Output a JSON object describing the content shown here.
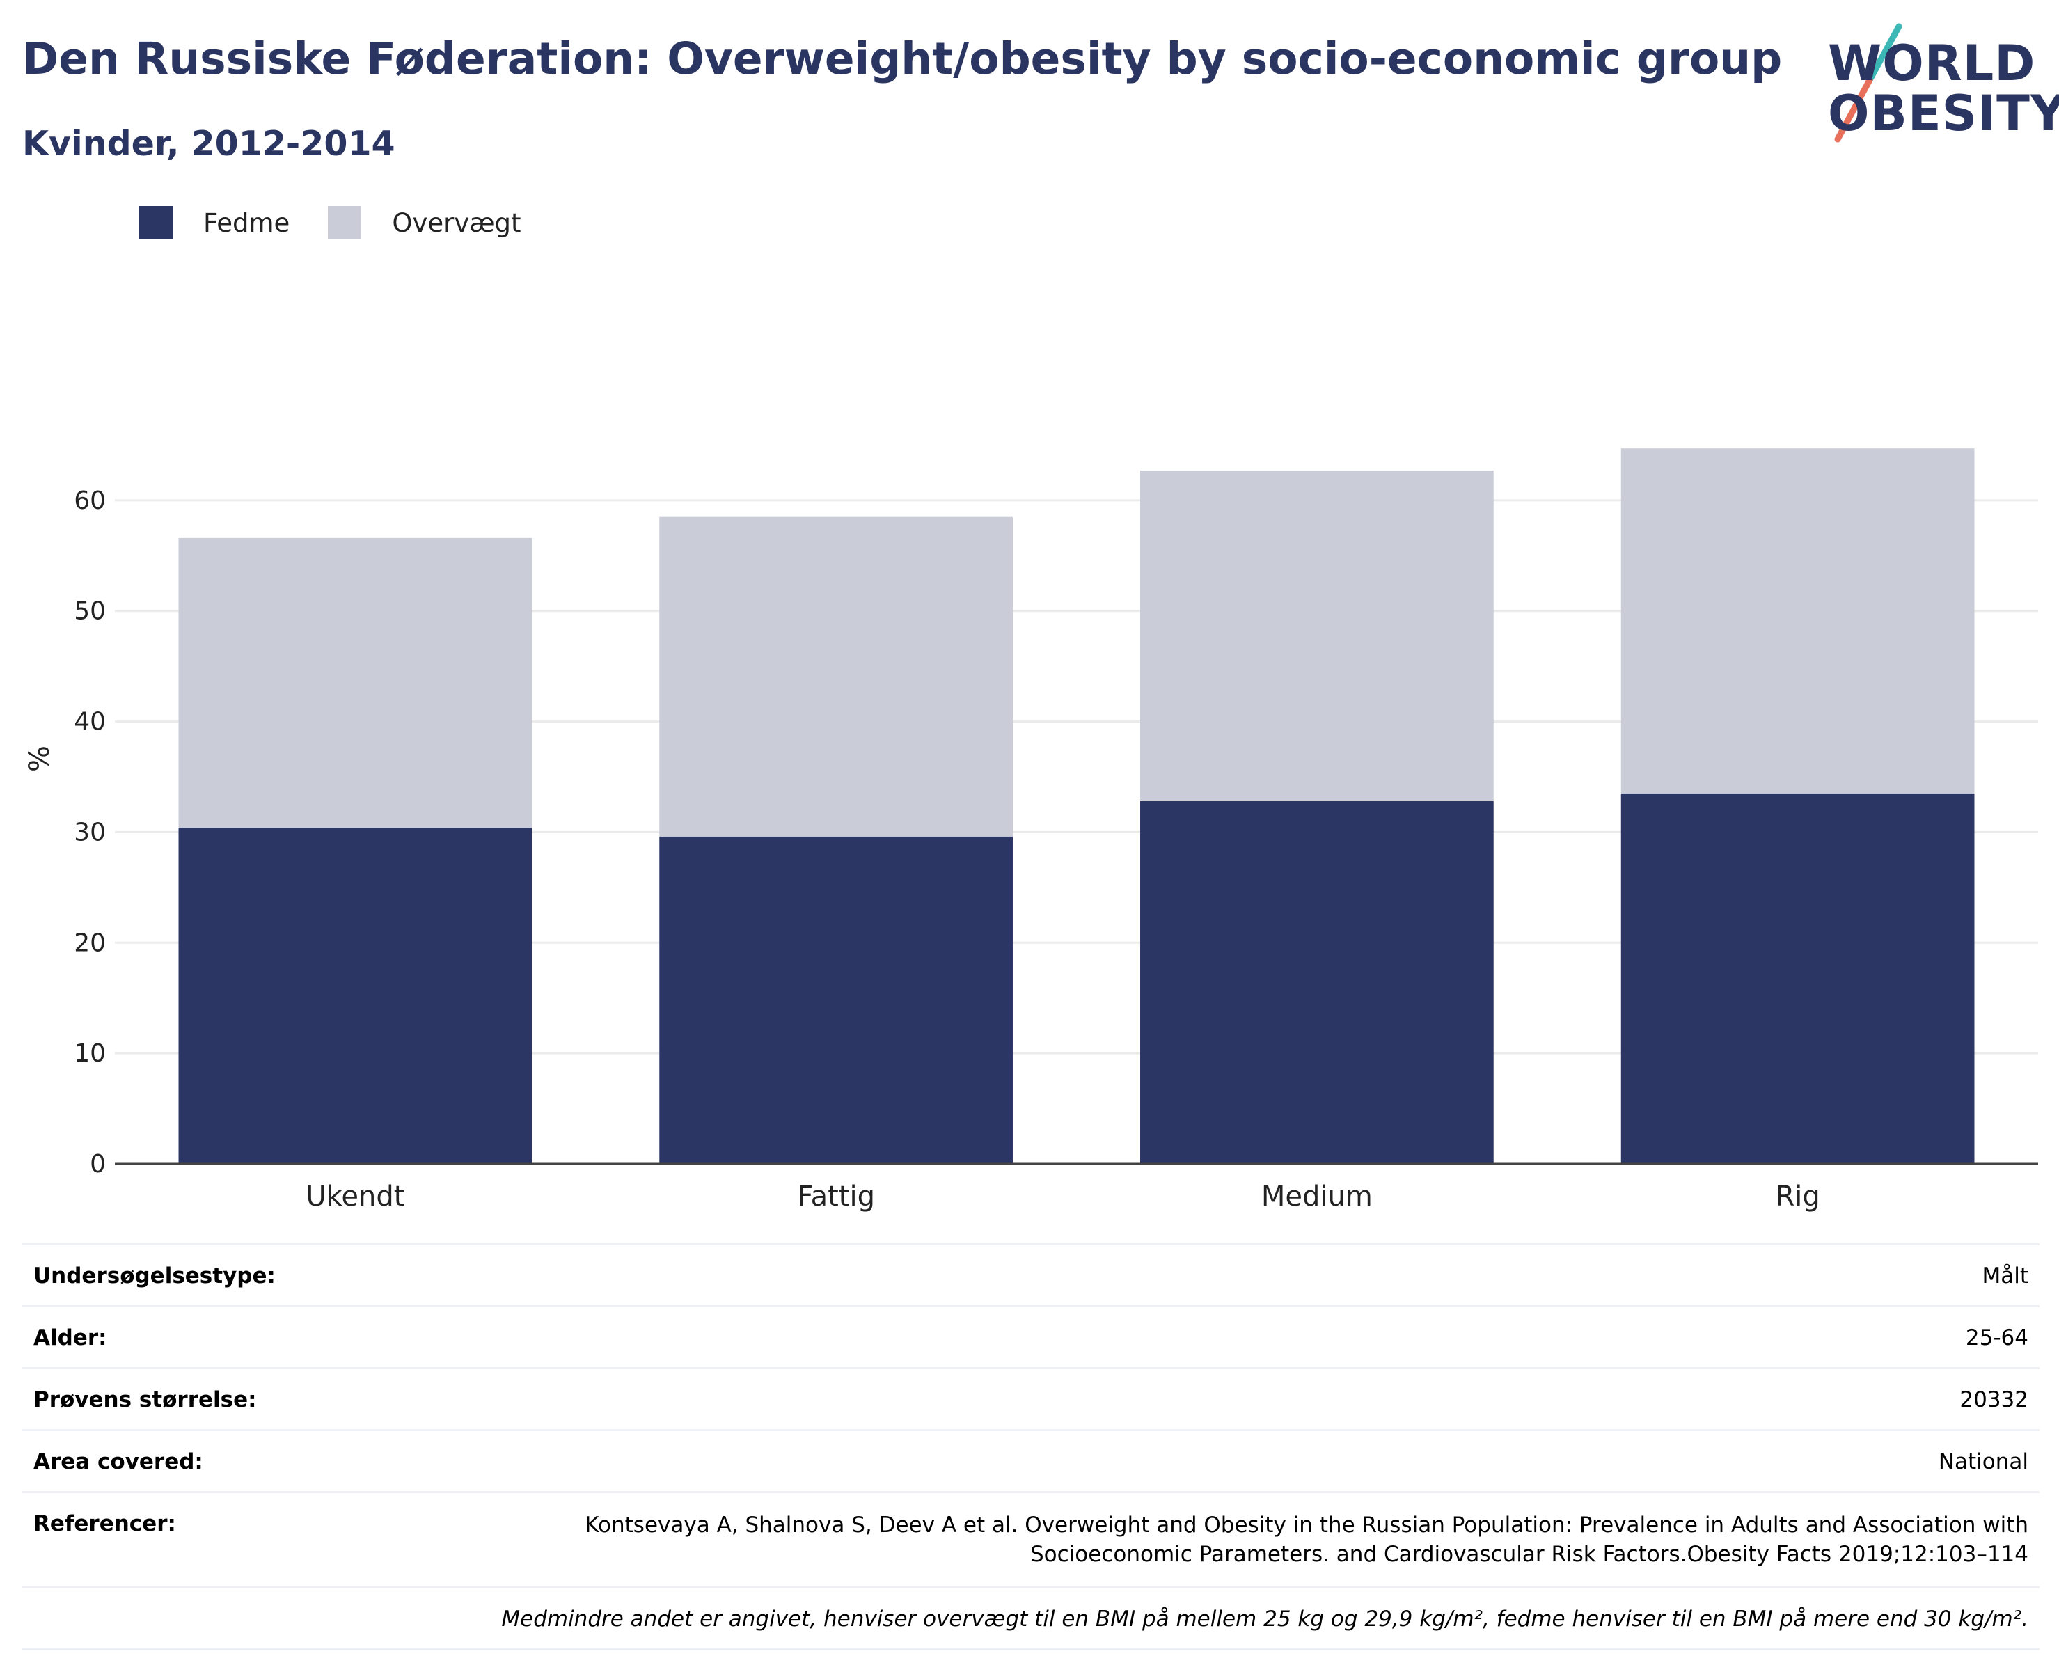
{
  "header": {
    "title": "Den Russiske Føderation: Overweight/obesity by socio-economic group",
    "subtitle": "Kvinder, 2012-2014"
  },
  "logo": {
    "line1": "WORLD",
    "line2": "OBESITY",
    "accent_teal": "#3bb8b5",
    "accent_red": "#e8705a"
  },
  "legend": [
    {
      "label": "Fedme",
      "color": "#2b3664"
    },
    {
      "label": "Overvægt",
      "color": "#cacdd8"
    }
  ],
  "chart_data": {
    "type": "bar",
    "stacked": true,
    "categories": [
      "Ukendt",
      "Fattig",
      "Medium",
      "Rig"
    ],
    "series": [
      {
        "name": "Fedme",
        "values": [
          30.4,
          29.6,
          32.8,
          33.5
        ],
        "color": "#2b3664"
      },
      {
        "name": "Overvægt",
        "values": [
          26.2,
          28.9,
          29.9,
          31.2
        ],
        "color": "#cacdd8"
      }
    ],
    "ylabel": "%",
    "ylim": [
      0,
      70
    ],
    "yticks": [
      0,
      10,
      20,
      30,
      40,
      50,
      60
    ],
    "grid": true,
    "legend_position": "top-left"
  },
  "info_table": [
    {
      "label": "Undersøgelsestype:",
      "value": "Målt"
    },
    {
      "label": "Alder:",
      "value": "25-64"
    },
    {
      "label": "Prøvens størrelse:",
      "value": "20332"
    },
    {
      "label": "Area covered:",
      "value": "National"
    },
    {
      "label": "Referencer:",
      "value": "Kontsevaya A, Shalnova S, Deev A et al. Overweight and Obesity in the Russian Population: Prevalence in Adults and Association with Socioeconomic Parameters. and Cardiovascular Risk Factors.Obesity Facts 2019;12:103–114"
    }
  ],
  "footnote": "Medmindre andet er angivet, henviser overvægt til en BMI på mellem 25 kg og 29,9 kg/m², fedme henviser til en BMI på mere end 30 kg/m²."
}
